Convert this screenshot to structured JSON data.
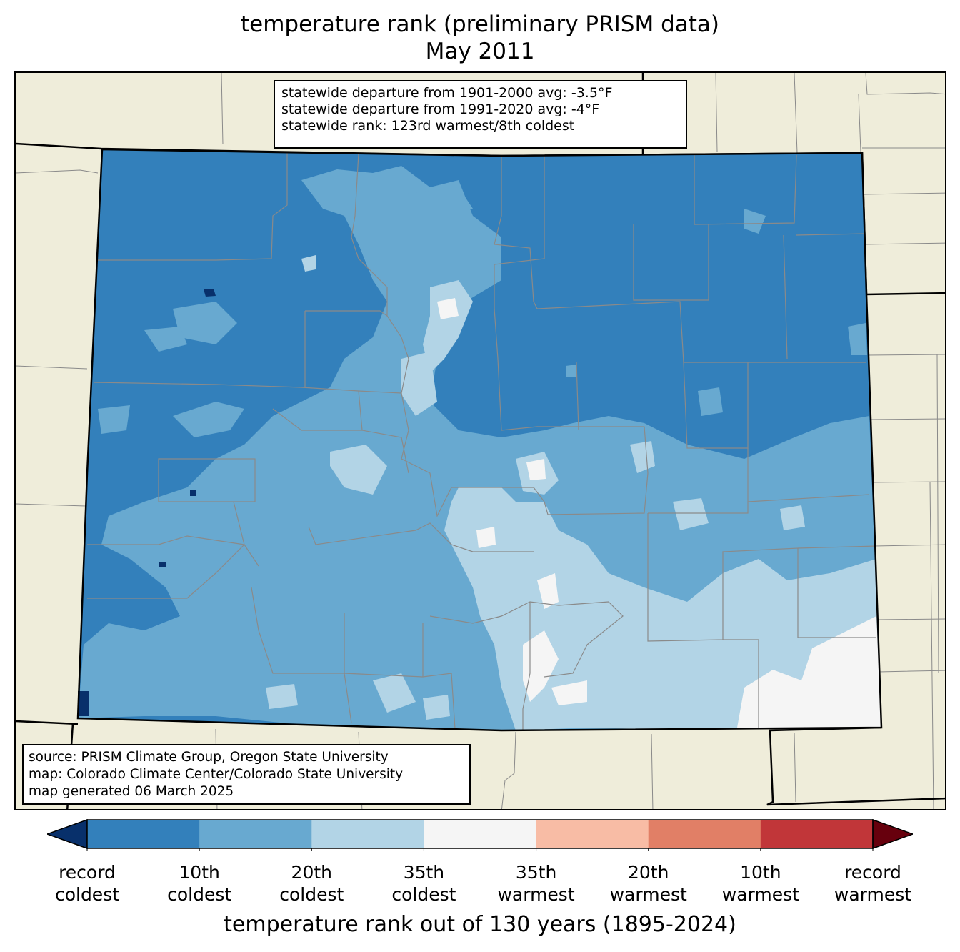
{
  "title": {
    "line1": "temperature rank (preliminary PRISM data)",
    "line2": "May 2011"
  },
  "stats": {
    "line1": "statewide departure from 1901-2000 avg: -3.5°F",
    "line2": "statewide departure from 1991-2020 avg: -4°F",
    "line3": "statewide rank: 123rd warmest/8th coldest"
  },
  "source": {
    "line1": "source: PRISM Climate Group, Oregon State University",
    "line2": "map: Colorado Climate Center/Colorado State University",
    "line3": "map generated 06 March 2025"
  },
  "colorbar": {
    "title": "temperature rank out of 130 years (1895-2024)",
    "extend_low_color": "#08306b",
    "extend_high_color": "#67000d",
    "bins": [
      {
        "from": "record coldest",
        "to": "10th coldest",
        "color": "#3380bb"
      },
      {
        "from": "10th coldest",
        "to": "20th coldest",
        "color": "#68a9d0"
      },
      {
        "from": "20th coldest",
        "to": "35th coldest",
        "color": "#b2d4e6"
      },
      {
        "from": "35th coldest",
        "to": "35th warmest",
        "color": "#f5f5f5"
      },
      {
        "from": "35th warmest",
        "to": "20th warmest",
        "color": "#f8bca5"
      },
      {
        "from": "20th warmest",
        "to": "10th warmest",
        "color": "#e17f66"
      },
      {
        "from": "10th warmest",
        "to": "record warmest",
        "color": "#c13639"
      }
    ],
    "ticks": [
      {
        "line1": "record",
        "line2": "coldest"
      },
      {
        "line1": "10th",
        "line2": "coldest"
      },
      {
        "line1": "20th",
        "line2": "coldest"
      },
      {
        "line1": "35th",
        "line2": "coldest"
      },
      {
        "line1": "35th",
        "line2": "warmest"
      },
      {
        "line1": "20th",
        "line2": "warmest"
      },
      {
        "line1": "10th",
        "line2": "warmest"
      },
      {
        "line1": "record",
        "line2": "warmest"
      }
    ]
  },
  "map_colors": {
    "land": "#efedda",
    "county_line": "#8a8a8a",
    "state_line": "#000000"
  }
}
